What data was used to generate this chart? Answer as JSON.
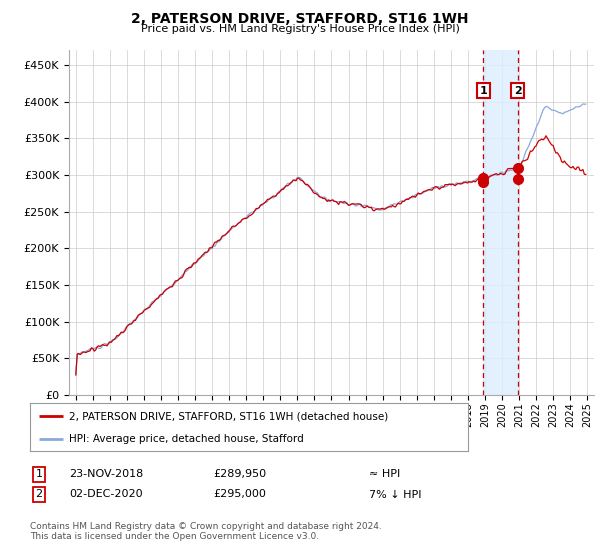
{
  "title": "2, PATERSON DRIVE, STAFFORD, ST16 1WH",
  "subtitle": "Price paid vs. HM Land Registry's House Price Index (HPI)",
  "ylabel_ticks": [
    0,
    50000,
    100000,
    150000,
    200000,
    250000,
    300000,
    350000,
    400000,
    450000
  ],
  "ylim": [
    0,
    470000
  ],
  "xlim_start": 1994.6,
  "xlim_end": 2025.4,
  "line1_color": "#cc0000",
  "line2_color": "#88aadd",
  "annotation_fill_color": "#ddeeff",
  "annotation_line_color": "#cc0000",
  "point1_x": 2018.9,
  "point1_y": 289950,
  "point2_x": 2020.92,
  "point2_y": 295000,
  "legend_line1": "2, PATERSON DRIVE, STAFFORD, ST16 1WH (detached house)",
  "legend_line2": "HPI: Average price, detached house, Stafford",
  "table_row1": [
    "1",
    "23-NOV-2018",
    "£289,950",
    "≈ HPI"
  ],
  "table_row2": [
    "2",
    "02-DEC-2020",
    "£295,000",
    "7% ↓ HPI"
  ],
  "footnote": "Contains HM Land Registry data © Crown copyright and database right 2024.\nThis data is licensed under the Open Government Licence v3.0.",
  "background_color": "#ffffff",
  "grid_color": "#cccccc"
}
